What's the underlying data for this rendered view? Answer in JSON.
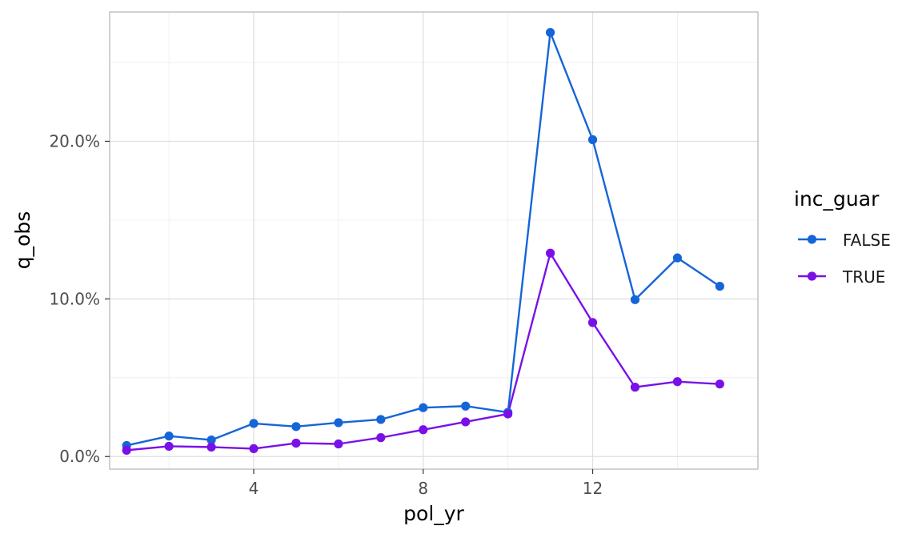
{
  "chart_data": {
    "type": "line",
    "xlabel": "pol_yr",
    "ylabel": "q_obs",
    "xlim": [
      0.6,
      15.9
    ],
    "ylim": [
      -0.008,
      0.282
    ],
    "x_ticks": [
      {
        "value": 4,
        "label": "4"
      },
      {
        "value": 8,
        "label": "8"
      },
      {
        "value": 12,
        "label": "12"
      }
    ],
    "x_minor_ticks": [
      2,
      6,
      10,
      14
    ],
    "y_ticks": [
      {
        "value": 0.0,
        "label": "0.0%"
      },
      {
        "value": 0.1,
        "label": "10.0%"
      },
      {
        "value": 0.2,
        "label": "20.0%"
      }
    ],
    "y_minor_ticks": [
      0.05,
      0.15,
      0.25
    ],
    "grid": true,
    "legend": {
      "title": "inc_guar",
      "position": "right"
    },
    "x": [
      1,
      2,
      3,
      4,
      5,
      6,
      7,
      8,
      9,
      10,
      11,
      12,
      13,
      14,
      15
    ],
    "series": [
      {
        "name": "FALSE",
        "color": "#1565d8",
        "values": [
          0.007,
          0.013,
          0.0105,
          0.021,
          0.019,
          0.0215,
          0.0235,
          0.031,
          0.032,
          0.028,
          0.269,
          0.201,
          0.0995,
          0.126,
          0.108
        ]
      },
      {
        "name": "TRUE",
        "color": "#7a10e8",
        "values": [
          0.004,
          0.0065,
          0.006,
          0.005,
          0.0085,
          0.008,
          0.012,
          0.017,
          0.022,
          0.027,
          0.129,
          0.085,
          0.044,
          0.0475,
          0.046
        ]
      }
    ]
  }
}
